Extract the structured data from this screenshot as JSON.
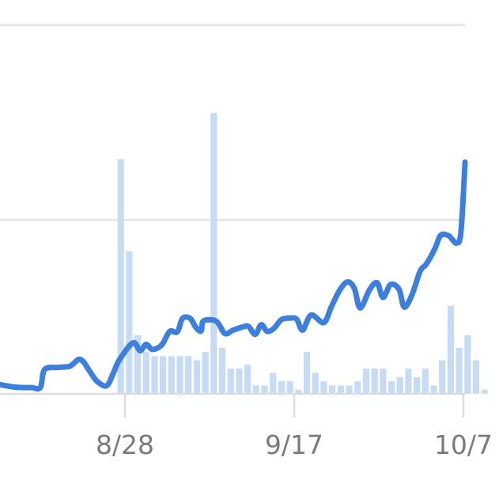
{
  "chart_data": {
    "type": "bar+line",
    "title": "",
    "xlabel": "",
    "ylabel": "",
    "grid": true,
    "x_ticks": [
      {
        "label": "8/28",
        "day": 0
      },
      {
        "label": "9/17",
        "day": 20
      },
      {
        "label": "10/7",
        "day": 40
      }
    ],
    "x_range_days": [
      -15,
      40.6
    ],
    "y_range": [
      0,
      100
    ],
    "gridlines_y": [
      0,
      41.5,
      88
    ],
    "colors": {
      "bars": "#c6dbf4",
      "line": "#3d7fdd",
      "grid": "#e3e3e6",
      "axis": "#dcdce0",
      "tick_label": "#7a7a7a"
    },
    "bar_start_day": -1.5,
    "bar_values": [
      0,
      56,
      34,
      14,
      10,
      9,
      9,
      9,
      9,
      9,
      8,
      10,
      67,
      11,
      6,
      6,
      7,
      2,
      2,
      5,
      3,
      3,
      1,
      10,
      5,
      3,
      2,
      2,
      2,
      3,
      6,
      6,
      6,
      3,
      4,
      6,
      4,
      6,
      2,
      8,
      21,
      11,
      14,
      8,
      1
    ],
    "line_points": [
      [
        -15,
        2.3
      ],
      [
        -14,
        1.9
      ],
      [
        -13,
        1.6
      ],
      [
        -12,
        1.5
      ],
      [
        -11,
        1.5
      ],
      [
        -10,
        1.5
      ],
      [
        -9.5,
        5.8
      ],
      [
        -8,
        6.3
      ],
      [
        -6.5,
        6.6
      ],
      [
        -5.5,
        8.2
      ],
      [
        -4.9,
        7.6
      ],
      [
        -4.2,
        5.5
      ],
      [
        -3.3,
        3.0
      ],
      [
        -2.2,
        1.9
      ],
      [
        -1.5,
        4.3
      ],
      [
        -0.8,
        7.6
      ],
      [
        0.2,
        10.6
      ],
      [
        0.7,
        11.8
      ],
      [
        1.2,
        12.1
      ],
      [
        1.8,
        10.3
      ],
      [
        2.5,
        11.8
      ],
      [
        3.2,
        10.6
      ],
      [
        4.0,
        11.1
      ],
      [
        4.5,
        12.1
      ],
      [
        5.3,
        14.9
      ],
      [
        6.2,
        14.8
      ],
      [
        6.8,
        18.0
      ],
      [
        7.7,
        18.0
      ],
      [
        8.4,
        15.8
      ],
      [
        9.0,
        15.0
      ],
      [
        9.3,
        17.4
      ],
      [
        10.8,
        17.3
      ],
      [
        11.8,
        14.4
      ],
      [
        12.8,
        15.2
      ],
      [
        14.0,
        16.0
      ],
      [
        14.6,
        16.1
      ],
      [
        15.4,
        14.2
      ],
      [
        16.1,
        16.5
      ],
      [
        16.8,
        14.9
      ],
      [
        17.6,
        15.6
      ],
      [
        18.5,
        17.7
      ],
      [
        19.6,
        18.1
      ],
      [
        20.3,
        17.8
      ],
      [
        21.0,
        15.2
      ],
      [
        22.0,
        18.8
      ],
      [
        23.5,
        17.0
      ],
      [
        24.4,
        20.8
      ],
      [
        25.4,
        24.8
      ],
      [
        26.3,
        26.7
      ],
      [
        27.1,
        25.2
      ],
      [
        27.8,
        20.5
      ],
      [
        28.9,
        24.8
      ],
      [
        29.8,
        26.5
      ],
      [
        30.5,
        23.0
      ],
      [
        31.4,
        26.1
      ],
      [
        32.4,
        24.9
      ],
      [
        33.0,
        20.7
      ],
      [
        33.9,
        23.5
      ],
      [
        34.9,
        29.3
      ],
      [
        35.6,
        30.9
      ],
      [
        36.6,
        34.5
      ],
      [
        37.3,
        37.8
      ],
      [
        38.2,
        37.8
      ],
      [
        38.7,
        36.8
      ],
      [
        39.2,
        36.0
      ],
      [
        39.7,
        38.5
      ],
      [
        40.2,
        55.3
      ]
    ]
  }
}
